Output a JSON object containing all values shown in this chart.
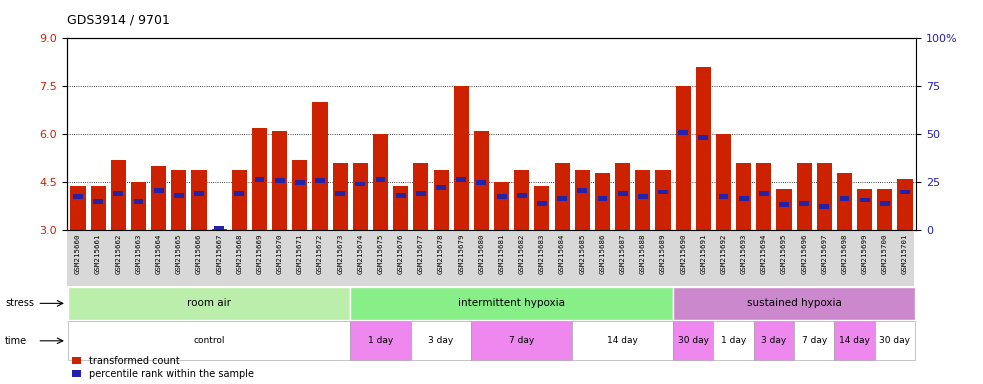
{
  "title": "GDS3914 / 9701",
  "samples": [
    "GSM215660",
    "GSM215661",
    "GSM215662",
    "GSM215663",
    "GSM215664",
    "GSM215665",
    "GSM215666",
    "GSM215667",
    "GSM215668",
    "GSM215669",
    "GSM215670",
    "GSM215671",
    "GSM215672",
    "GSM215673",
    "GSM215674",
    "GSM215675",
    "GSM215676",
    "GSM215677",
    "GSM215678",
    "GSM215679",
    "GSM215680",
    "GSM215681",
    "GSM215682",
    "GSM215683",
    "GSM215684",
    "GSM215685",
    "GSM215686",
    "GSM215687",
    "GSM215688",
    "GSM215689",
    "GSM215690",
    "GSM215691",
    "GSM215692",
    "GSM215693",
    "GSM215694",
    "GSM215695",
    "GSM215696",
    "GSM215697",
    "GSM215698",
    "GSM215699",
    "GSM215700",
    "GSM215701"
  ],
  "bar_heights": [
    4.4,
    4.4,
    5.2,
    4.5,
    5.0,
    4.9,
    4.9,
    3.05,
    4.9,
    6.2,
    6.1,
    5.2,
    7.0,
    5.1,
    5.1,
    6.0,
    4.4,
    5.1,
    4.9,
    7.5,
    6.1,
    4.5,
    4.9,
    4.4,
    5.1,
    4.9,
    4.8,
    5.1,
    4.9,
    4.9,
    7.5,
    8.1,
    6.0,
    5.1,
    5.1,
    4.3,
    5.1,
    5.1,
    4.8,
    4.3,
    4.3,
    4.6
  ],
  "blue_markers": [
    4.05,
    3.9,
    4.15,
    3.9,
    4.25,
    4.1,
    4.15,
    3.05,
    4.15,
    4.6,
    4.55,
    4.5,
    4.55,
    4.15,
    4.45,
    4.6,
    4.1,
    4.15,
    4.35,
    4.6,
    4.5,
    4.05,
    4.1,
    3.85,
    4.0,
    4.25,
    4.0,
    4.15,
    4.05,
    4.2,
    6.05,
    5.9,
    4.05,
    4.0,
    4.15,
    3.8,
    3.85,
    3.75,
    4.0,
    3.95,
    3.85,
    4.2
  ],
  "ylim_min": 3,
  "ylim_max": 9,
  "yticks_left": [
    3,
    4.5,
    6,
    7.5,
    9
  ],
  "yticks_right": [
    0,
    25,
    50,
    75,
    100
  ],
  "bar_color": "#CC2200",
  "marker_color": "#2222AA",
  "stress_colors": {
    "room air": "#BBEEAA",
    "intermittent hypoxia": "#88EE88",
    "sustained hypoxia": "#CC88CC"
  },
  "stress_groups": [
    {
      "label": "room air",
      "start": 0,
      "end": 14
    },
    {
      "label": "intermittent hypoxia",
      "start": 14,
      "end": 30
    },
    {
      "label": "sustained hypoxia",
      "start": 30,
      "end": 42
    }
  ],
  "time_groups": [
    {
      "label": "control",
      "start": 0,
      "end": 14,
      "pink": false
    },
    {
      "label": "1 day",
      "start": 14,
      "end": 17,
      "pink": true
    },
    {
      "label": "3 day",
      "start": 17,
      "end": 20,
      "pink": false
    },
    {
      "label": "7 day",
      "start": 20,
      "end": 25,
      "pink": true
    },
    {
      "label": "14 day",
      "start": 25,
      "end": 30,
      "pink": false
    },
    {
      "label": "30 day",
      "start": 30,
      "end": 32,
      "pink": true
    },
    {
      "label": "1 day",
      "start": 32,
      "end": 34,
      "pink": false
    },
    {
      "label": "3 day",
      "start": 34,
      "end": 36,
      "pink": true
    },
    {
      "label": "7 day",
      "start": 36,
      "end": 38,
      "pink": false
    },
    {
      "label": "14 day",
      "start": 38,
      "end": 40,
      "pink": true
    },
    {
      "label": "30 day",
      "start": 40,
      "end": 42,
      "pink": false
    }
  ],
  "time_pink_color": "#EE88EE",
  "time_white_color": "#EECCEE"
}
